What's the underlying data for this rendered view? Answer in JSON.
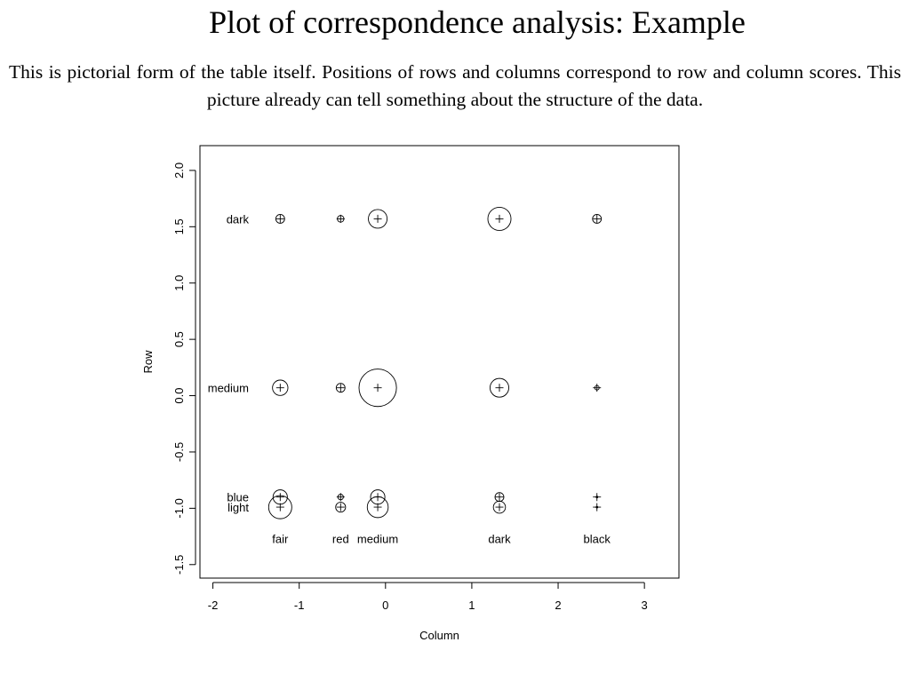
{
  "slide": {
    "title": "Plot of correspondence analysis: Example",
    "subtitle": "This is pictorial form of the table itself. Positions of rows and columns correspond to row and column scores. This picture already can tell something about the structure of the data."
  },
  "chart_data": {
    "type": "scatter",
    "xlabel": "Column",
    "ylabel": "Row",
    "xlim": [
      -2.15,
      3.4
    ],
    "ylim": [
      -1.62,
      2.22
    ],
    "xticks": [
      -2,
      -1,
      0,
      1,
      2,
      3
    ],
    "yticks": [
      -1.5,
      -1.0,
      -0.5,
      0.0,
      0.5,
      1.0,
      1.5,
      2.0
    ],
    "xtick_labels": [
      "-2",
      "-1",
      "0",
      "1",
      "2",
      "3"
    ],
    "ytick_labels": [
      "-1.5",
      "-1.0",
      "-0.5",
      "0.0",
      "0.5",
      "1.0",
      "1.5",
      "2.0"
    ],
    "grid": false,
    "box": true,
    "rows": [
      {
        "name": "dark",
        "score": 1.57
      },
      {
        "name": "medium",
        "score": 0.07
      },
      {
        "name": "blue",
        "score": -0.9
      },
      {
        "name": "light",
        "score": -0.99
      }
    ],
    "columns": [
      {
        "name": "fair",
        "score": -1.22
      },
      {
        "name": "red",
        "score": -0.52
      },
      {
        "name": "medium",
        "score": -0.09
      },
      {
        "name": "dark",
        "score": 1.32
      },
      {
        "name": "black",
        "score": 2.45
      }
    ],
    "circle_size": [
      [
        0.8,
        0.6,
        1.7,
        2.1,
        0.8
      ],
      [
        1.4,
        0.8,
        3.4,
        1.7,
        0.4
      ],
      [
        1.3,
        0.5,
        1.3,
        0.8,
        0.15
      ],
      [
        2.1,
        0.9,
        1.9,
        1.1,
        0.15
      ]
    ],
    "column_label_y": -1.27
  }
}
